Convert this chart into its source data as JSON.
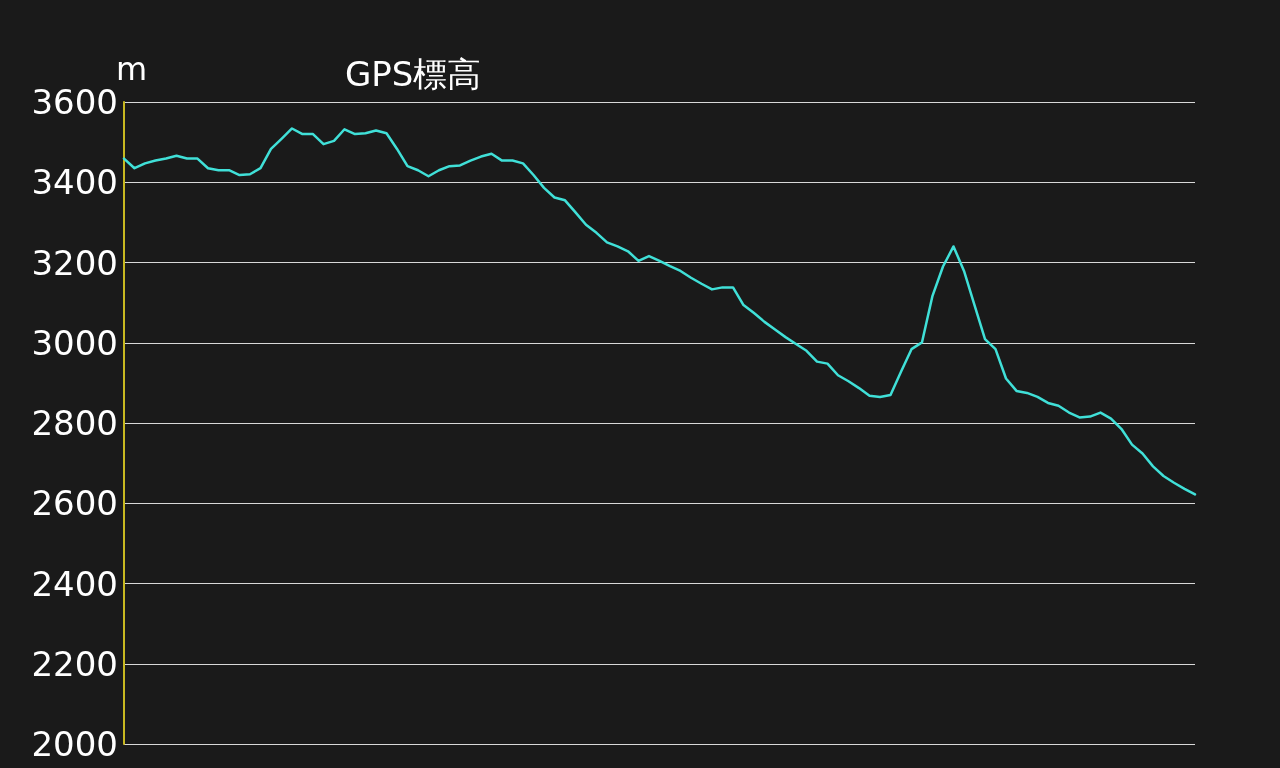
{
  "chart_data": {
    "type": "line",
    "title": "GPS標高",
    "ylabel": "m",
    "categories": [
      null,
      null,
      null,
      null,
      null,
      null,
      null,
      null,
      null,
      null,
      null,
      null,
      null,
      null,
      null,
      null,
      null,
      null,
      null,
      null,
      null,
      null,
      null,
      null,
      null,
      null,
      null,
      null,
      null,
      null,
      null,
      null,
      null,
      null,
      null,
      null,
      null,
      null,
      null,
      null,
      null,
      null,
      null,
      null,
      null,
      null,
      null,
      null,
      null,
      null,
      null,
      null,
      null,
      null,
      null,
      null,
      null,
      null,
      null,
      null,
      null,
      null,
      null,
      null,
      null,
      null,
      null,
      null,
      null,
      null,
      null,
      null,
      null,
      null,
      null,
      null,
      null,
      null,
      null,
      null,
      null,
      null,
      null,
      null,
      null,
      null,
      null,
      null,
      null,
      null,
      null,
      null,
      null,
      null,
      null,
      null,
      null,
      null,
      null,
      null,
      null,
      null,
      null
    ],
    "series": [
      {
        "color": "#40e0d8",
        "values": [
          3459,
          3435,
          3447,
          3454,
          3459,
          3466,
          3459,
          3459,
          3435,
          3430,
          3430,
          3418,
          3420,
          3435,
          3483,
          3508,
          3534,
          3520,
          3520,
          3495,
          3503,
          3532,
          3520,
          3522,
          3529,
          3522,
          3483,
          3440,
          3430,
          3415,
          3430,
          3440,
          3442,
          3454,
          3464,
          3471,
          3454,
          3454,
          3447,
          3418,
          3386,
          3362,
          3355,
          3325,
          3294,
          3274,
          3250,
          3240,
          3228,
          3204,
          3216,
          3204,
          3191,
          3179,
          3162,
          3147,
          3133,
          3138,
          3138,
          3094,
          3074,
          3052,
          3033,
          3014,
          2997,
          2980,
          2953,
          2948,
          2919,
          2904,
          2887,
          2868,
          2865,
          2870,
          2928,
          2984,
          3001,
          3117,
          3190,
          3240,
          3179,
          3094,
          3009,
          2984,
          2911,
          2880,
          2875,
          2865,
          2850,
          2843,
          2826,
          2814,
          2816,
          2826,
          2811,
          2785,
          2746,
          2724,
          2692,
          2668,
          2651,
          2636,
          2622
        ]
      }
    ],
    "ylim": [
      2000,
      3600
    ],
    "yticks": [
      2000,
      2200,
      2400,
      2600,
      2800,
      3000,
      3200,
      3400,
      3600
    ],
    "grid": "y",
    "marker": "none",
    "line_style": "solid",
    "tick_labels": "y"
  }
}
